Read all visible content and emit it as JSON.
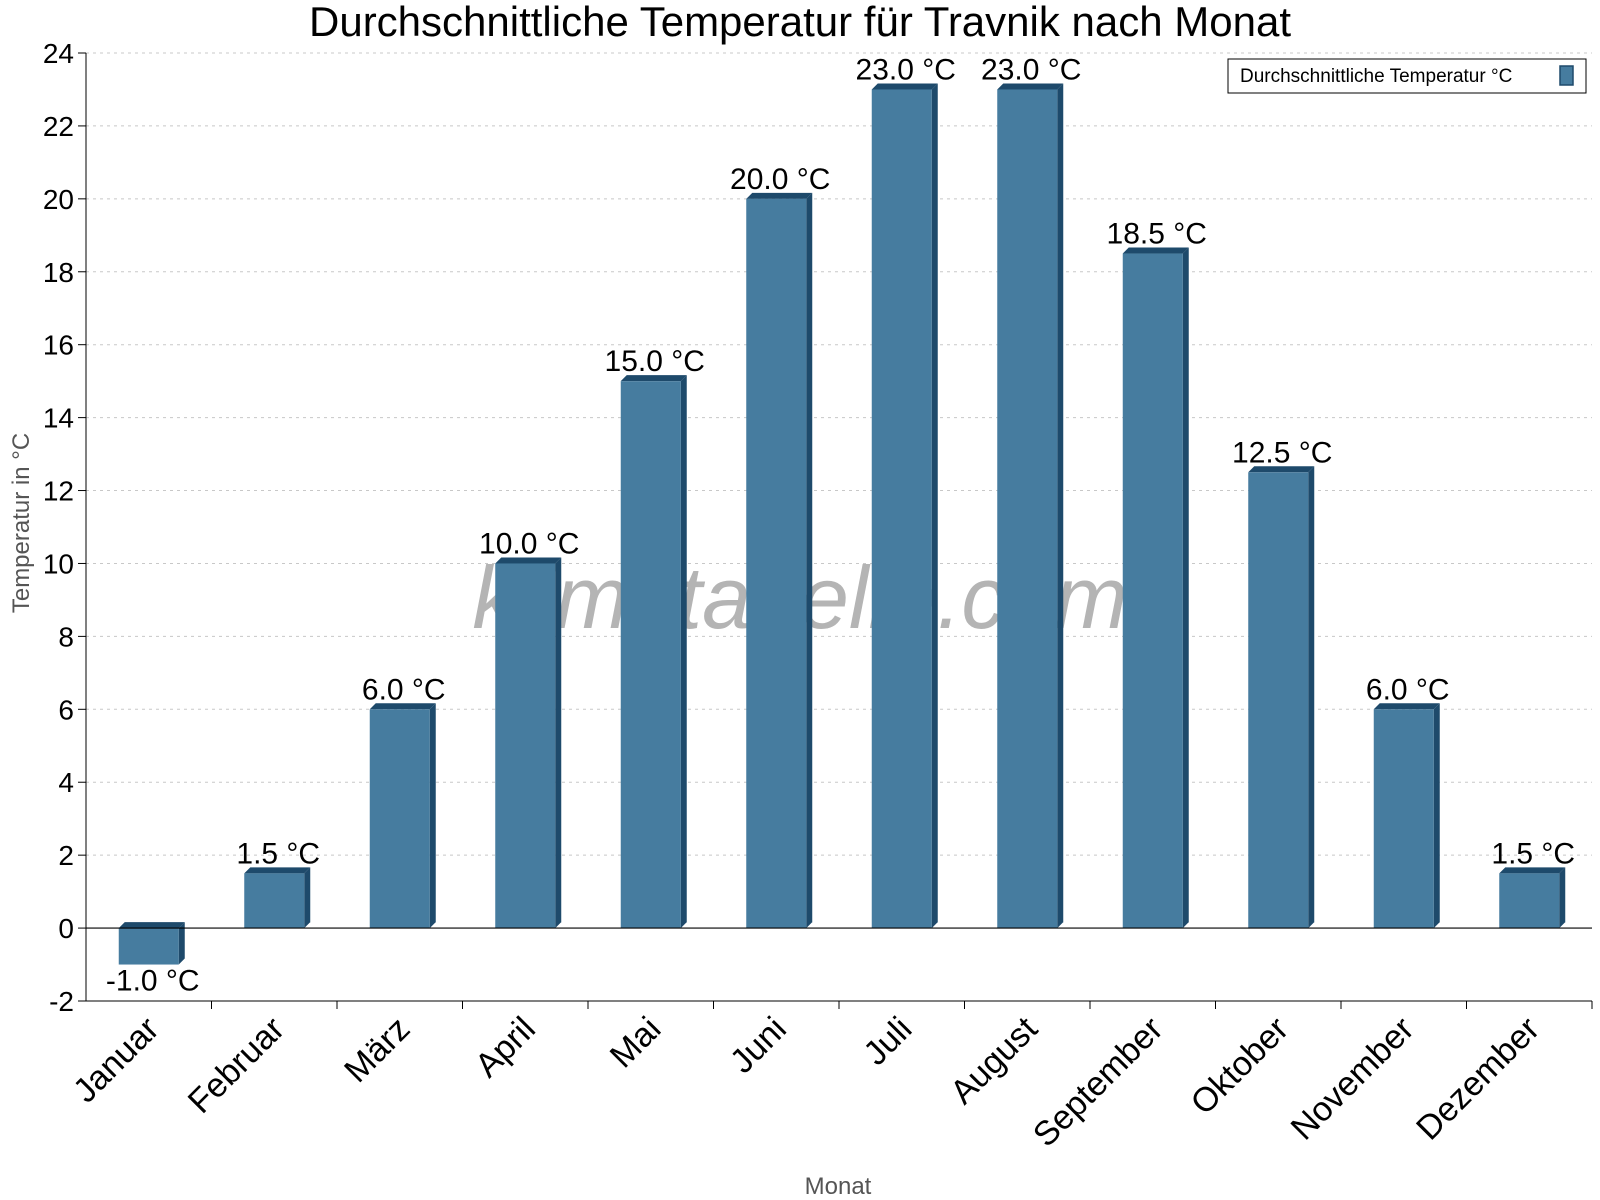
{
  "chart_data": {
    "type": "bar",
    "title": "Durchschnittliche Temperatur für Travnik nach Monat",
    "xlabel": "Monat",
    "ylabel": "Temperatur in °C",
    "ylim": [
      -2,
      24
    ],
    "yticks": [
      -2,
      0,
      2,
      4,
      6,
      8,
      10,
      12,
      14,
      16,
      18,
      20,
      22,
      24
    ],
    "grid": true,
    "legend_position": "top-right",
    "categories": [
      "Januar",
      "Februar",
      "März",
      "April",
      "Mai",
      "Juni",
      "Juli",
      "August",
      "September",
      "Oktober",
      "November",
      "Dezember"
    ],
    "series": [
      {
        "name": "Durchschnittliche Temperatur °C",
        "values": [
          -1.0,
          1.5,
          6.0,
          10.0,
          15.0,
          20.0,
          23.0,
          23.0,
          18.5,
          12.5,
          6.0,
          1.5
        ],
        "labels": [
          "-1.0 °C",
          "1.5 °C",
          "6.0 °C",
          "10.0 °C",
          "15.0 °C",
          "20.0 °C",
          "23.0 °C",
          "23.0 °C",
          "18.5 °C",
          "12.5 °C",
          "6.0 °C",
          "1.5 °C"
        ],
        "color": "#467c9f",
        "edge_color": "#1e4a6b"
      }
    ],
    "watermark": "klimatabelle.com"
  }
}
